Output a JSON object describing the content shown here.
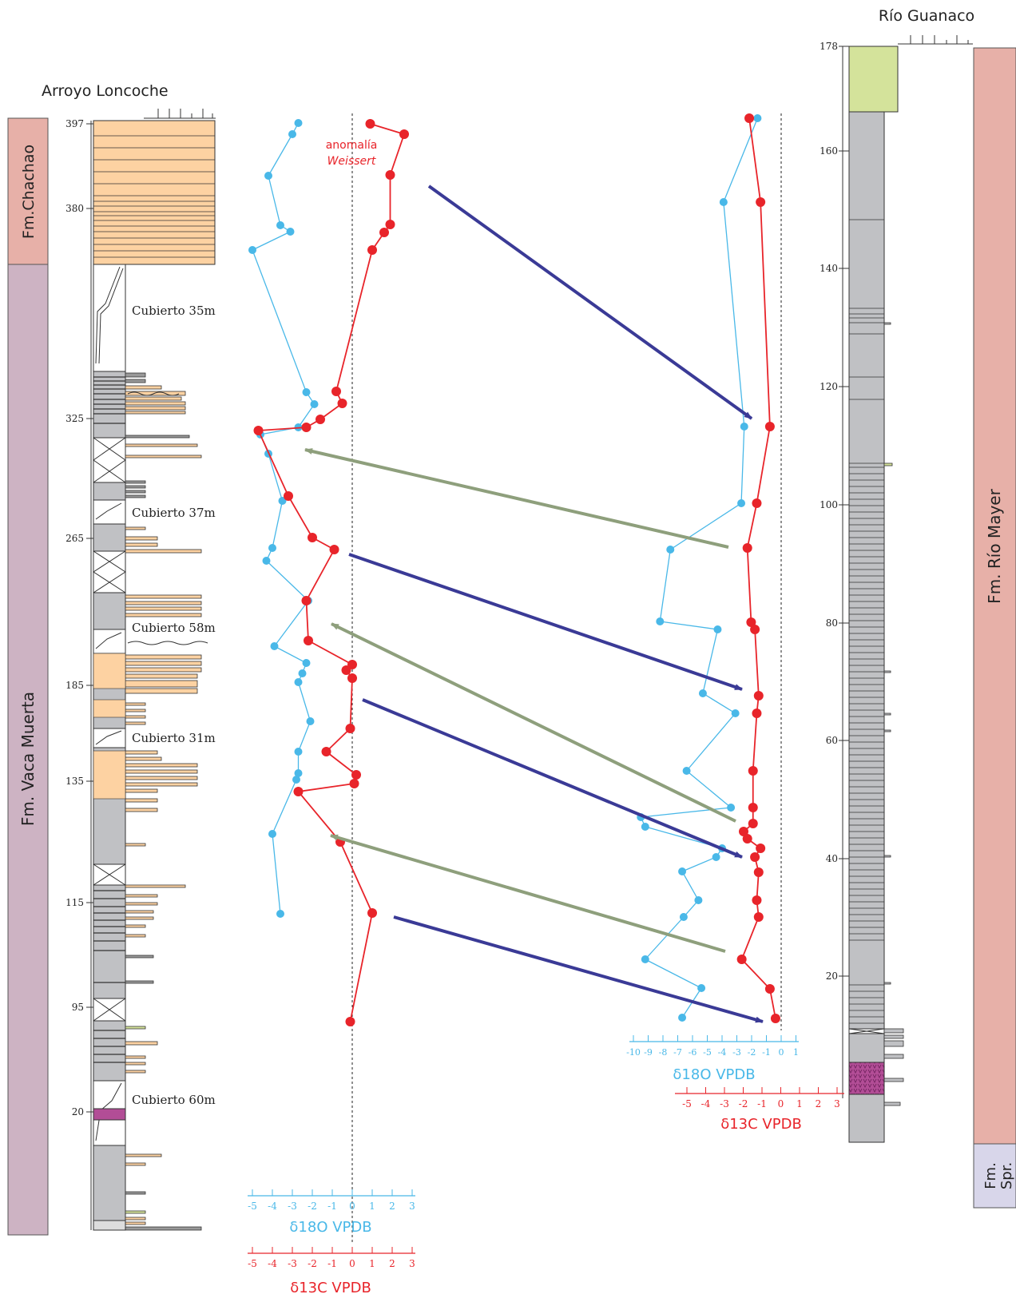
{
  "colors": {
    "o18": "#49b8e8",
    "c13": "#e8242a",
    "blue_arrow": "#3a3a96",
    "green_arrow": "#8e9f7c",
    "orange": "#fdd2a2",
    "grey": "#c0c1c4",
    "pink_band": "#e7b0a8",
    "mauve_band": "#cdb3c3",
    "lavender_band": "#d8d6ea",
    "lime": "#d4e39b",
    "magenta": "#b24d96"
  },
  "left": {
    "section_title": "Arroyo Loncoche",
    "depth_ticks": [
      "397",
      "380",
      "325",
      "265",
      "185",
      "135",
      "115",
      "95",
      "20"
    ],
    "formations": [
      "Fm.Chachao",
      "Fm. Vaca Muerta"
    ],
    "covered": [
      "Cubierto 35m",
      "Cubierto 37m",
      "Cubierto 58m",
      "Cubierto 31m",
      "Cubierto 60m"
    ],
    "anomaly_line1": "anomalía",
    "anomaly_line2": "Weissert",
    "o18_axis": {
      "ticks": [
        "-5",
        "-4",
        "-3",
        "-2",
        "-1",
        "0",
        "1",
        "2",
        "3"
      ],
      "label": "δ18O VPDB"
    },
    "c13_axis": {
      "ticks": [
        "-5",
        "-4",
        "-3",
        "-2",
        "-1",
        "0",
        "1",
        "2",
        "3"
      ],
      "label": "δ13C VPDB"
    }
  },
  "right": {
    "section_title": "Río Guanaco",
    "depth_ticks": [
      "178",
      "160",
      "140",
      "120",
      "100",
      "80",
      "60",
      "40",
      "20"
    ],
    "formations": [
      "Fm. Río Mayer",
      "Fm.\nSpr."
    ],
    "o18_axis": {
      "ticks": [
        "-10",
        "-9",
        "-8",
        "-7",
        "-6",
        "-5",
        "-4",
        "-3",
        "-2",
        "-1",
        "0",
        "1"
      ],
      "label": "δ18O VPDB"
    },
    "c13_axis": {
      "ticks": [
        "-5",
        "-4",
        "-3",
        "-2",
        "-1",
        "0",
        "1",
        "2",
        "3"
      ],
      "label": "δ13C VPDB"
    }
  },
  "chart_data": [
    {
      "type": "line",
      "section": "Arroyo Loncoche",
      "series": [
        {
          "name": "δ18O VPDB",
          "color": "#49b8e8",
          "values": [
            -2.7,
            -3.0,
            -4.2,
            -3.6,
            -3.1,
            -5.0,
            -2.3,
            -1.9,
            -2.7,
            -4.6,
            -4.2,
            -3.5,
            -4.0,
            -4.3,
            -2.2,
            -3.9,
            -2.3,
            -2.5,
            -2.7,
            -2.1,
            -2.7,
            -2.7,
            -2.8,
            -4.0,
            -3.6
          ]
        },
        {
          "name": "δ13C VPDB",
          "color": "#e8242a",
          "values": [
            0.9,
            2.6,
            1.9,
            1.9,
            1.6,
            1.0,
            -0.8,
            -0.5,
            -1.6,
            -2.3,
            -4.7,
            -3.2,
            -2.0,
            -0.9,
            -2.3,
            -2.2,
            0.0,
            -0.3,
            0.0,
            -0.1,
            -1.3,
            0.2,
            0.1,
            -2.7,
            -0.6,
            1.0,
            -0.1
          ]
        }
      ]
    },
    {
      "type": "line",
      "section": "Río Guanaco",
      "series": [
        {
          "name": "δ18O VPDB",
          "color": "#49b8e8",
          "values": [
            -1.6,
            -3.9,
            -2.5,
            -2.7,
            -7.5,
            -8.2,
            -4.3,
            -5.3,
            -3.1,
            -6.4,
            -3.4,
            -9.5,
            -9.2,
            -4.0,
            -4.4,
            -6.7,
            -5.6,
            -6.6,
            -9.2,
            -5.4,
            -6.7
          ]
        },
        {
          "name": "δ13C VPDB",
          "color": "#e8242a",
          "values": [
            -1.7,
            -1.1,
            -0.6,
            -1.3,
            -1.8,
            -1.6,
            -1.4,
            -1.2,
            -1.3,
            -1.5,
            -1.5,
            -1.5,
            -2.0,
            -1.8,
            -1.1,
            -1.4,
            -1.2,
            -1.3,
            -1.2,
            -2.1,
            -0.6,
            -0.3
          ]
        }
      ]
    }
  ]
}
